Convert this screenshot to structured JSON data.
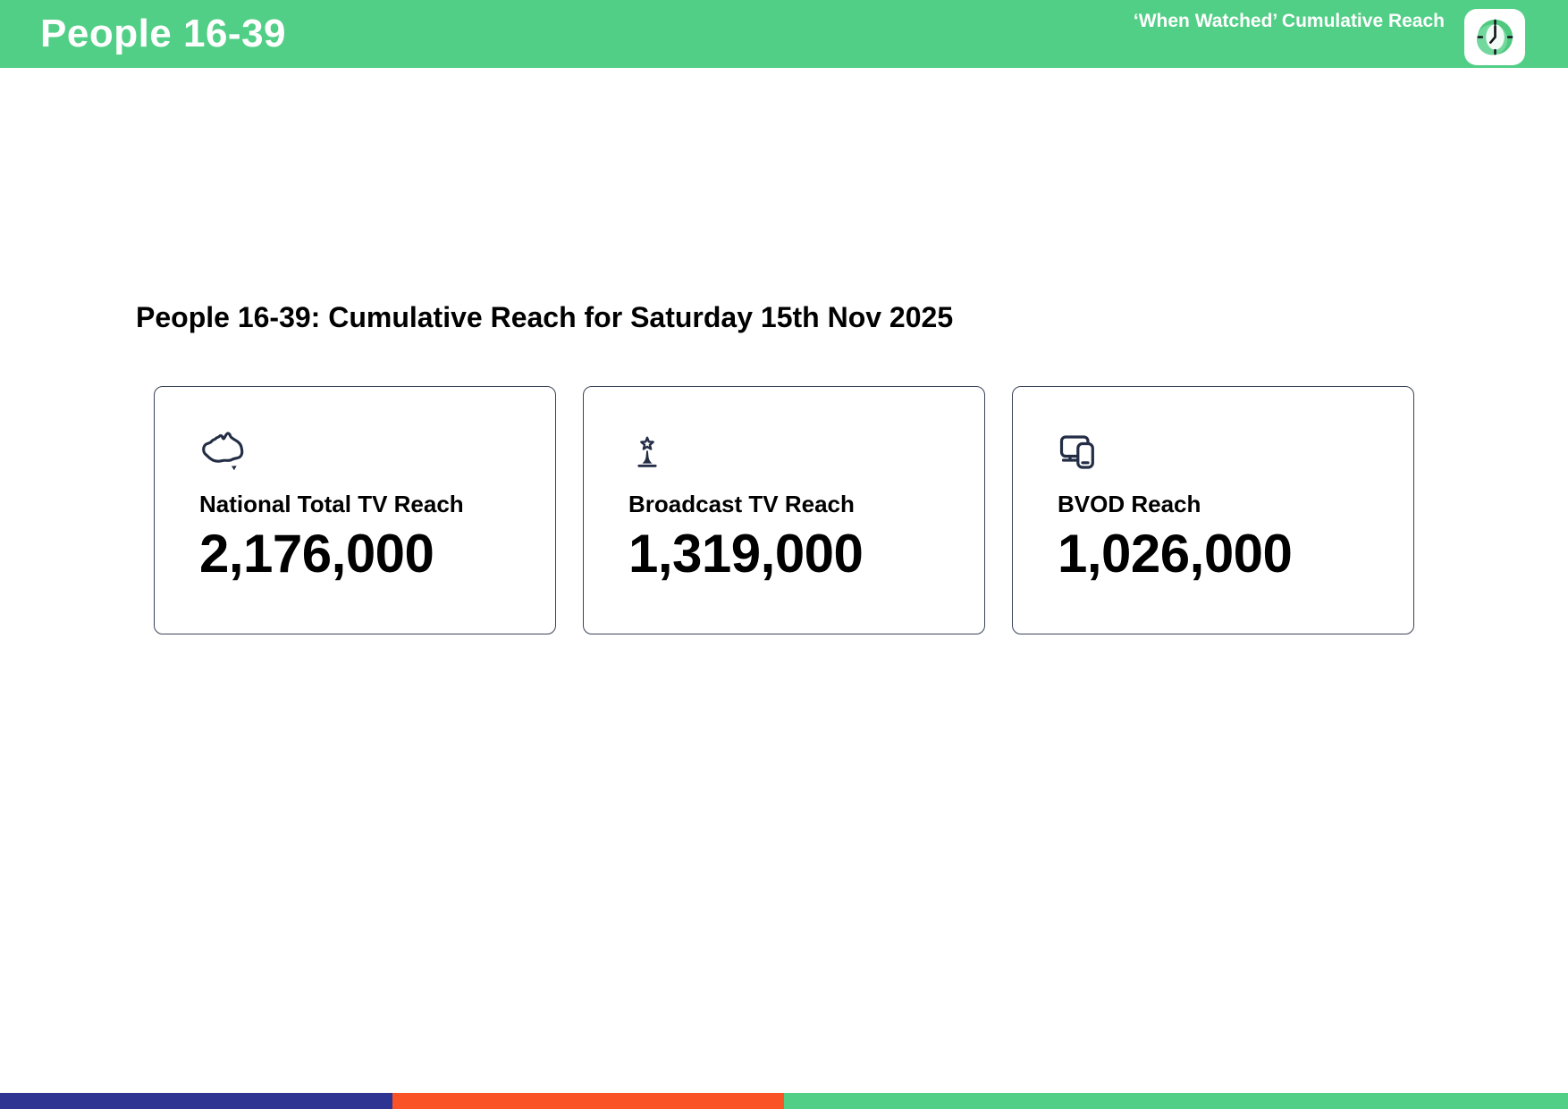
{
  "header": {
    "title": "People 16-39",
    "tagline": "‘When Watched’ Cumulative Reach",
    "icon": "clock-icon"
  },
  "page": {
    "heading": "People 16-39: Cumulative Reach for Saturday 15th Nov 2025"
  },
  "cards": [
    {
      "icon": "australia-map-icon",
      "label": "National Total TV Reach",
      "value": "2,176,000"
    },
    {
      "icon": "broadcast-tower-icon",
      "label": "Broadcast TV Reach",
      "value": "1,319,000"
    },
    {
      "icon": "tv-and-phone-icon",
      "label": "BVOD Reach",
      "value": "1,026,000"
    }
  ],
  "colors": {
    "brand_green": "#52CF86",
    "icon_navy": "#232D45",
    "card_border": "#3A4357",
    "footer_blue": "#2E3492",
    "footer_orange": "#FA5426",
    "text_black": "#000000"
  },
  "footer": {
    "segments": [
      {
        "name": "blue",
        "color": "#2E3492",
        "width_pct": 25
      },
      {
        "name": "orange",
        "color": "#FA5426",
        "width_pct": 25
      },
      {
        "name": "green",
        "color": "#52CF86",
        "width_pct": 50
      }
    ]
  }
}
